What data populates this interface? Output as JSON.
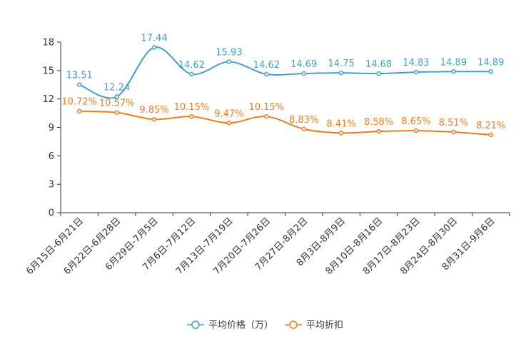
{
  "chart_data": {
    "type": "line",
    "title": "",
    "xlabel": "",
    "ylabel": "",
    "ylim": [
      0,
      18
    ],
    "yticks": [
      0,
      3,
      6,
      9,
      12,
      15,
      18
    ],
    "grid": false,
    "legend_position": "bottom-center",
    "categories": [
      "6月15日-6月21日",
      "6月22日-6月28日",
      "6月29日-7月5日",
      "7月6日-7月12日",
      "7月13日-7月19日",
      "7月20日-7月26日",
      "7月27日-8月2日",
      "8月3日-8月9日",
      "8月10日-8月16日",
      "8月17日-8月23日",
      "8月24日-8月30日",
      "8月31日-9月6日"
    ],
    "series": [
      {
        "name": "平均价格（万）",
        "color": "#3fa0d0",
        "values": [
          13.51,
          12.24,
          17.44,
          14.62,
          15.93,
          14.62,
          14.69,
          14.75,
          14.68,
          14.83,
          14.89,
          14.89
        ],
        "labels": [
          "13.51",
          "12.24",
          "17.44",
          "14.62",
          "15.93",
          "14.62",
          "14.69",
          "14.75",
          "14.68",
          "14.83",
          "14.89",
          "14.89"
        ]
      },
      {
        "name": "平均折扣",
        "color": "#f07c1e",
        "values": [
          10.72,
          10.57,
          9.85,
          10.15,
          9.47,
          10.15,
          8.83,
          8.41,
          8.58,
          8.65,
          8.51,
          8.21
        ],
        "labels": [
          "10.72%",
          "10.57%",
          "9.85%",
          "10.15%",
          "9.47%",
          "10.15%",
          "8.83%",
          "8.41%",
          "8.58%",
          "8.65%",
          "8.51%",
          "8.21%"
        ]
      }
    ]
  }
}
